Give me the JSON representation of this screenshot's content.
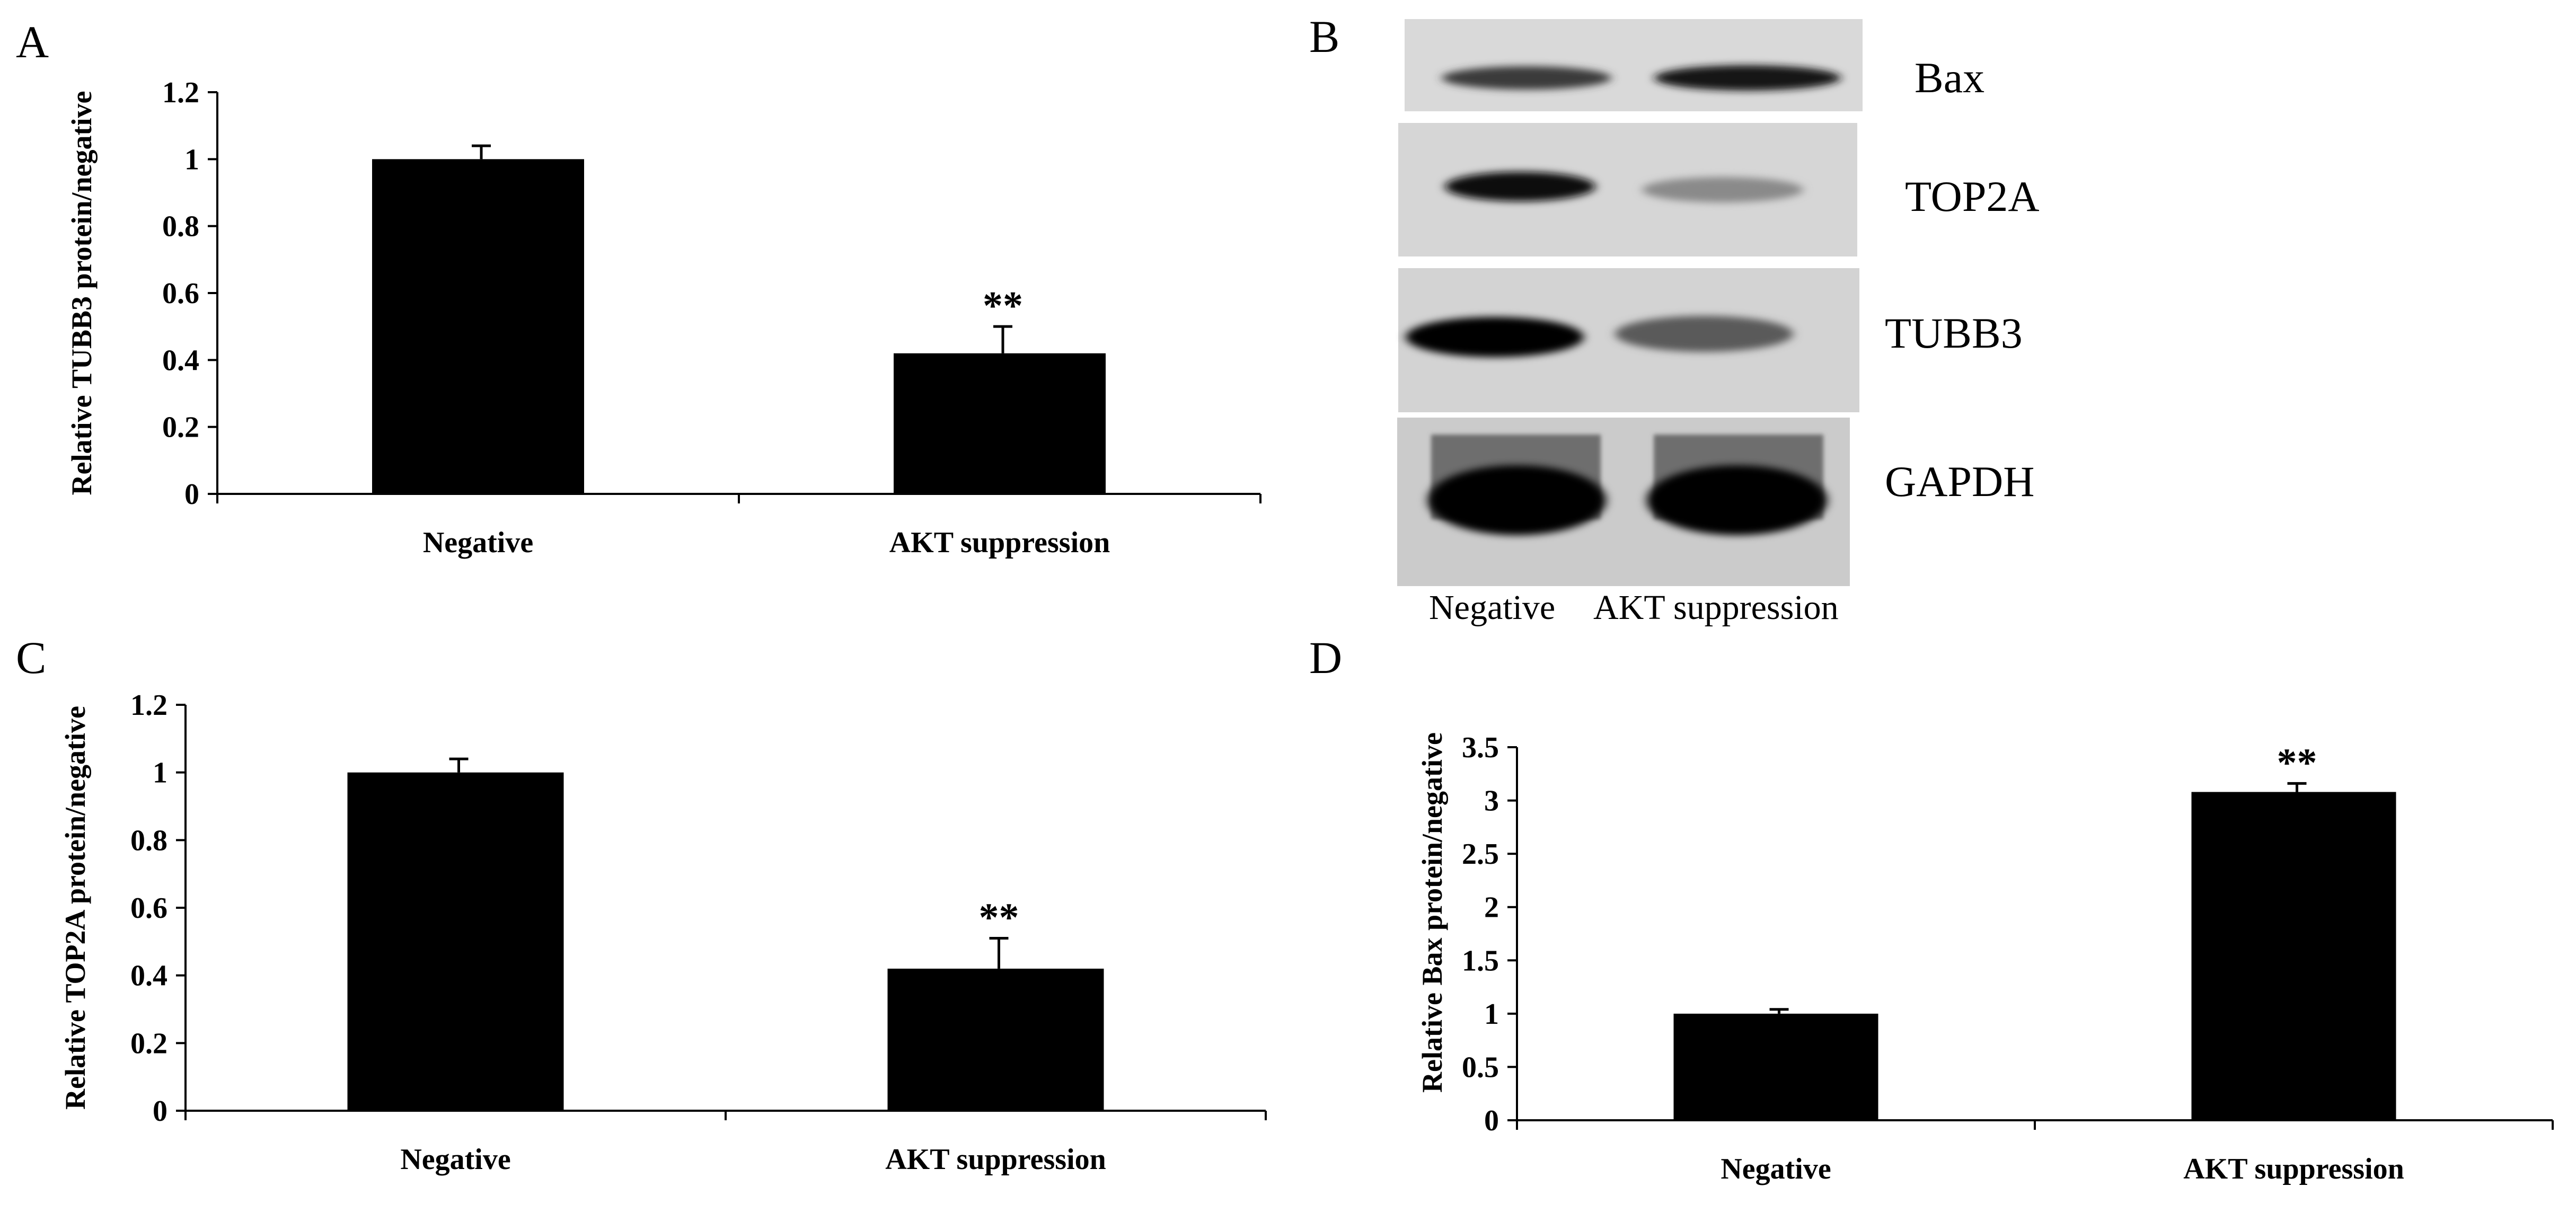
{
  "figure": {
    "panel_letters": {
      "a": "A",
      "b": "B",
      "c": "C",
      "d": "D"
    }
  },
  "blot": {
    "bands": [
      {
        "label": "Bax",
        "intensities": [
          0.55,
          0.85
        ]
      },
      {
        "label": "TOP2A",
        "intensities": [
          0.9,
          0.3
        ]
      },
      {
        "label": "TUBB3",
        "intensities": [
          0.95,
          0.55
        ]
      },
      {
        "label": "GAPDH",
        "intensities": [
          1.0,
          1.0
        ]
      }
    ],
    "lanes": [
      "Negative",
      "AKT suppression"
    ]
  },
  "chart_data": [
    {
      "type": "bar",
      "panel": "A",
      "ylabel": "Relative TUBB3 protein/negative",
      "categories": [
        "Negative",
        "AKT suppression"
      ],
      "values": [
        1.0,
        0.42
      ],
      "errors": [
        0.04,
        0.08
      ],
      "annotations": [
        "",
        "**"
      ],
      "ylim": [
        0,
        1.2
      ],
      "yticks": [
        0,
        0.2,
        0.4,
        0.6,
        0.8,
        1,
        1.2
      ],
      "ytick_labels": [
        "0",
        "0.2",
        "0.4",
        "0.6",
        "0.8",
        "1",
        "1.2"
      ],
      "grid": false
    },
    {
      "type": "bar",
      "panel": "C",
      "ylabel": "Relative TOP2A protein/negative",
      "categories": [
        "Negative",
        "AKT suppression"
      ],
      "values": [
        1.0,
        0.42
      ],
      "errors": [
        0.04,
        0.09
      ],
      "annotations": [
        "",
        "**"
      ],
      "ylim": [
        0,
        1.2
      ],
      "yticks": [
        0,
        0.2,
        0.4,
        0.6,
        0.8,
        1,
        1.2
      ],
      "ytick_labels": [
        "0",
        "0.2",
        "0.4",
        "0.6",
        "0.8",
        "1",
        "1.2"
      ],
      "grid": false
    },
    {
      "type": "bar",
      "panel": "D",
      "ylabel": "Relative Bax protein/negative",
      "categories": [
        "Negative",
        "AKT suppression"
      ],
      "values": [
        1.0,
        3.08
      ],
      "errors": [
        0.04,
        0.08
      ],
      "annotations": [
        "",
        "**"
      ],
      "ylim": [
        0,
        3.5
      ],
      "yticks": [
        0,
        0.5,
        1,
        1.5,
        2,
        2.5,
        3,
        3.5
      ],
      "ytick_labels": [
        "0",
        "0.5",
        "1",
        "1.5",
        "2",
        "2.5",
        "3",
        "3.5"
      ],
      "grid": false
    }
  ]
}
